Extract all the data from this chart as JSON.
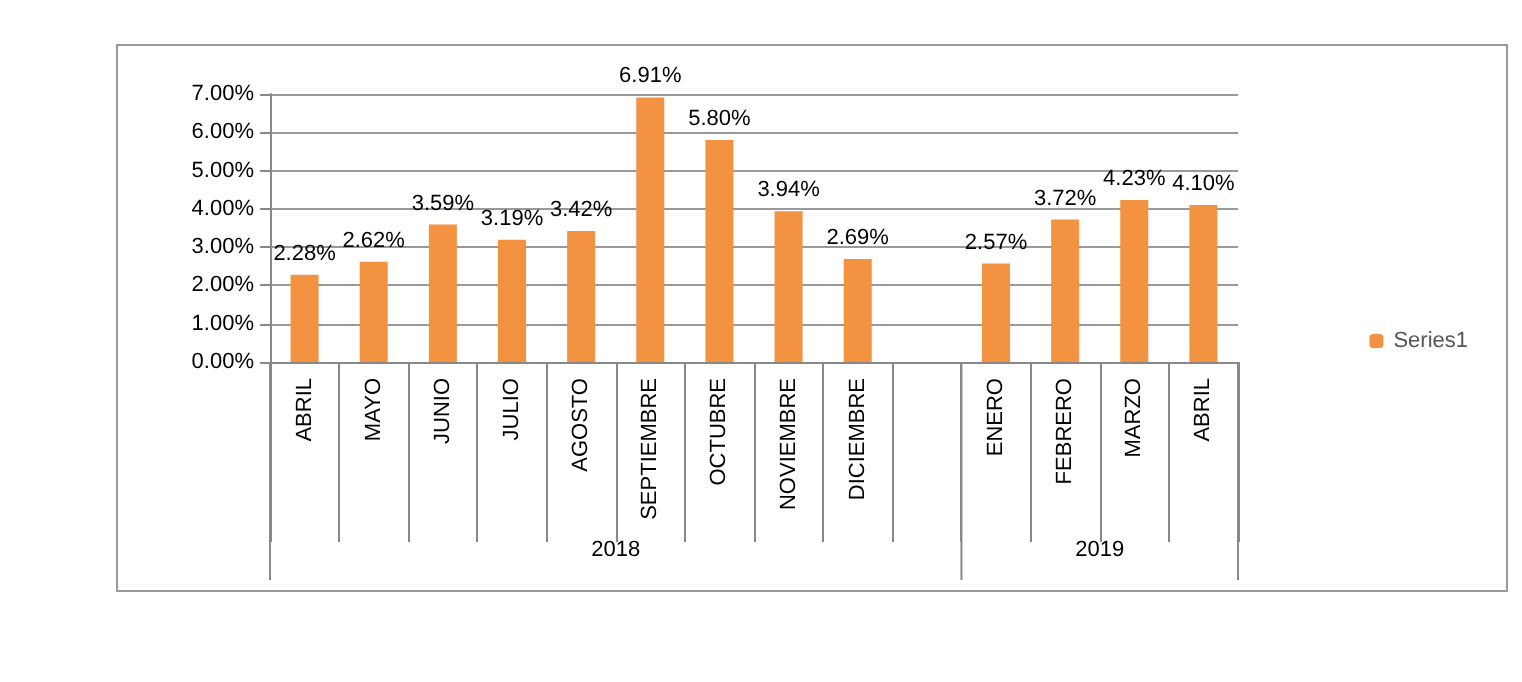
{
  "chart_data": {
    "type": "bar",
    "categories": [
      "ABRIL",
      "MAYO",
      "JUNIO",
      "JULIO",
      "AGOSTO",
      "SEPTIEMBRE",
      "OCTUBRE",
      "NOVIEMBRE",
      "DICIEMBRE",
      null,
      "ENERO",
      "FEBRERO",
      "MARZO",
      "ABRIL"
    ],
    "series": [
      {
        "name": "Series1",
        "color": "#f39241",
        "values": [
          2.28,
          2.62,
          3.59,
          3.19,
          3.42,
          6.91,
          5.8,
          3.94,
          2.69,
          null,
          2.57,
          3.72,
          4.23,
          4.1
        ],
        "value_labels": [
          "2.28%",
          "2.62%",
          "3.59%",
          "3.19%",
          "3.42%",
          "6.91%",
          "5.80%",
          "3.94%",
          "2.69%",
          null,
          "2.57%",
          "3.72%",
          "4.23%",
          "4.10%"
        ]
      }
    ],
    "ylim": [
      0,
      7
    ],
    "yticks": [
      {
        "value": 0,
        "label": "0.00%"
      },
      {
        "value": 1,
        "label": "1.00%"
      },
      {
        "value": 2,
        "label": "2.00%"
      },
      {
        "value": 3,
        "label": "3.00%"
      },
      {
        "value": 4,
        "label": "4.00%"
      },
      {
        "value": 5,
        "label": "5.00%"
      },
      {
        "value": 6,
        "label": "6.00%"
      },
      {
        "value": 7,
        "label": "7.00%"
      }
    ],
    "annotations": [
      "2018",
      "2019"
    ],
    "grid": "y",
    "legend": "right"
  }
}
